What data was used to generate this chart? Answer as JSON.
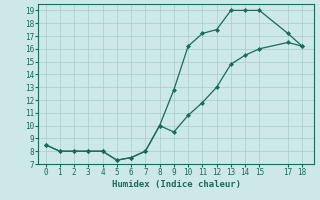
{
  "xlabel": "Humidex (Indice chaleur)",
  "bg_color": "#cce8e8",
  "line_color": "#1a6b5a",
  "xlim": [
    -0.5,
    18.8
  ],
  "ylim": [
    7,
    19.5
  ],
  "xticks": [
    0,
    1,
    2,
    3,
    4,
    5,
    6,
    7,
    8,
    9,
    10,
    11,
    12,
    13,
    14,
    15,
    17,
    18
  ],
  "yticks": [
    7,
    8,
    9,
    10,
    11,
    12,
    13,
    14,
    15,
    16,
    17,
    18,
    19
  ],
  "line1_x": [
    0,
    1,
    2,
    3,
    4,
    5,
    6,
    7,
    8,
    9,
    10,
    11,
    12,
    13,
    14,
    15,
    17,
    18
  ],
  "line1_y": [
    8.5,
    8.0,
    8.0,
    8.0,
    8.0,
    7.3,
    7.5,
    8.0,
    10.0,
    12.8,
    16.2,
    17.2,
    17.5,
    19.0,
    19.0,
    19.0,
    17.2,
    16.2
  ],
  "line2_x": [
    0,
    1,
    2,
    3,
    4,
    5,
    6,
    7,
    8,
    9,
    10,
    11,
    12,
    13,
    14,
    15,
    17,
    18
  ],
  "line2_y": [
    8.5,
    8.0,
    8.0,
    8.0,
    8.0,
    7.3,
    7.5,
    8.0,
    10.0,
    9.5,
    10.8,
    11.8,
    13.0,
    14.8,
    15.5,
    16.0,
    16.5,
    16.2
  ],
  "grid_color": "#aacccc",
  "tick_fontsize": 5.5,
  "xlabel_fontsize": 6.5,
  "marker": "D",
  "marker_size": 2.0,
  "linewidth": 0.9
}
